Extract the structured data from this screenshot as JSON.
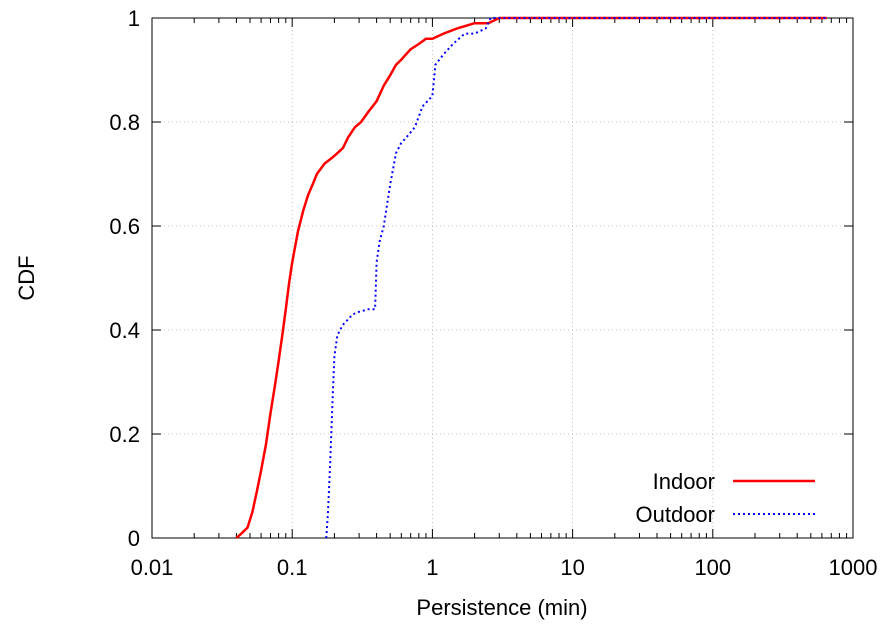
{
  "chart_data": {
    "type": "line",
    "xlabel": "Persistence (min)",
    "ylabel": "CDF",
    "xscale": "log",
    "xlim": [
      0.01,
      1000
    ],
    "ylim": [
      0,
      1
    ],
    "grid": true,
    "legend_position": "bottom-right",
    "x_ticks": [
      "0.01",
      "0.1",
      "1",
      "10",
      "100",
      "1000"
    ],
    "y_ticks": [
      "0",
      "0.2",
      "0.4",
      "0.6",
      "0.8",
      "1"
    ],
    "series": [
      {
        "name": "Indoor",
        "color": "#ff0000",
        "style": "solid",
        "points": [
          [
            0.04,
            0
          ],
          [
            0.044,
            0.01
          ],
          [
            0.048,
            0.02
          ],
          [
            0.052,
            0.05
          ],
          [
            0.056,
            0.09
          ],
          [
            0.06,
            0.13
          ],
          [
            0.065,
            0.18
          ],
          [
            0.07,
            0.24
          ],
          [
            0.075,
            0.29
          ],
          [
            0.08,
            0.34
          ],
          [
            0.085,
            0.39
          ],
          [
            0.09,
            0.44
          ],
          [
            0.095,
            0.49
          ],
          [
            0.1,
            0.53
          ],
          [
            0.11,
            0.59
          ],
          [
            0.12,
            0.63
          ],
          [
            0.13,
            0.66
          ],
          [
            0.14,
            0.68
          ],
          [
            0.15,
            0.7
          ],
          [
            0.17,
            0.72
          ],
          [
            0.19,
            0.73
          ],
          [
            0.21,
            0.74
          ],
          [
            0.23,
            0.75
          ],
          [
            0.25,
            0.77
          ],
          [
            0.28,
            0.79
          ],
          [
            0.31,
            0.8
          ],
          [
            0.35,
            0.82
          ],
          [
            0.4,
            0.84
          ],
          [
            0.45,
            0.87
          ],
          [
            0.5,
            0.89
          ],
          [
            0.55,
            0.91
          ],
          [
            0.6,
            0.92
          ],
          [
            0.7,
            0.94
          ],
          [
            0.8,
            0.95
          ],
          [
            0.9,
            0.96
          ],
          [
            1.0,
            0.96
          ],
          [
            1.2,
            0.97
          ],
          [
            1.5,
            0.98
          ],
          [
            2.0,
            0.99
          ],
          [
            2.5,
            0.99
          ],
          [
            3.0,
            1.0
          ],
          [
            10,
            1.0
          ],
          [
            100,
            1.0
          ],
          [
            650,
            1.0
          ]
        ]
      },
      {
        "name": "Outdoor",
        "color": "#0000ff",
        "style": "dotted",
        "points": [
          [
            0.175,
            0
          ],
          [
            0.18,
            0.05
          ],
          [
            0.185,
            0.12
          ],
          [
            0.19,
            0.2
          ],
          [
            0.195,
            0.28
          ],
          [
            0.2,
            0.35
          ],
          [
            0.21,
            0.39
          ],
          [
            0.23,
            0.41
          ],
          [
            0.27,
            0.43
          ],
          [
            0.3,
            0.435
          ],
          [
            0.35,
            0.44
          ],
          [
            0.39,
            0.44
          ],
          [
            0.4,
            0.53
          ],
          [
            0.42,
            0.57
          ],
          [
            0.45,
            0.6
          ],
          [
            0.5,
            0.68
          ],
          [
            0.55,
            0.74
          ],
          [
            0.6,
            0.76
          ],
          [
            0.65,
            0.77
          ],
          [
            0.75,
            0.79
          ],
          [
            0.85,
            0.83
          ],
          [
            1.0,
            0.85
          ],
          [
            1.05,
            0.91
          ],
          [
            1.2,
            0.93
          ],
          [
            1.4,
            0.95
          ],
          [
            1.7,
            0.97
          ],
          [
            2.0,
            0.97
          ],
          [
            2.4,
            0.98
          ],
          [
            2.6,
            1.0
          ],
          [
            10,
            1.0
          ],
          [
            100,
            1.0
          ],
          [
            650,
            1.0
          ]
        ]
      }
    ]
  }
}
